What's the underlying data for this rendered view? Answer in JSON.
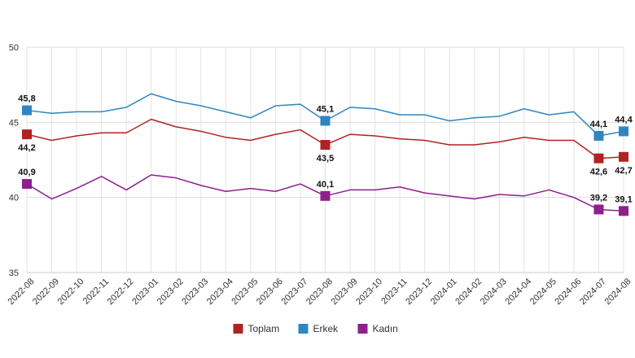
{
  "chart_data": {
    "type": "line",
    "title": "",
    "xlabel": "",
    "ylabel": "",
    "ylim": [
      35,
      50
    ],
    "yticks": [
      35,
      40,
      45,
      50
    ],
    "grid": true,
    "legend_position": "bottom-center",
    "categories": [
      "2022-08",
      "2022-09",
      "2022-10",
      "2022-11",
      "2022-12",
      "2023-01",
      "2023-02",
      "2023-03",
      "2023-04",
      "2023-05",
      "2023-06",
      "2023-07",
      "2023-08",
      "2023-09",
      "2023-10",
      "2023-11",
      "2023-12",
      "2024-01",
      "2024-02",
      "2024-03",
      "2024-04",
      "2024-05",
      "2024-06",
      "2024-07",
      "2024-08"
    ],
    "series": [
      {
        "name": "Toplam",
        "color": "#b22222",
        "values": [
          44.2,
          43.8,
          44.1,
          44.3,
          44.3,
          45.2,
          44.7,
          44.4,
          44.0,
          43.8,
          44.2,
          44.5,
          43.5,
          44.2,
          44.1,
          43.9,
          43.8,
          43.5,
          43.5,
          43.7,
          44.0,
          43.8,
          43.8,
          42.6,
          42.7
        ],
        "labeled_points": [
          {
            "index": 0,
            "text": "44,2",
            "pos": "below"
          },
          {
            "index": 12,
            "text": "43,5",
            "pos": "below"
          },
          {
            "index": 23,
            "text": "42,6",
            "pos": "below"
          },
          {
            "index": 24,
            "text": "42,7",
            "pos": "below"
          }
        ]
      },
      {
        "name": "Erkek",
        "color": "#2e86c1",
        "values": [
          45.8,
          45.6,
          45.7,
          45.7,
          46.0,
          46.9,
          46.4,
          46.1,
          45.7,
          45.3,
          46.1,
          46.2,
          45.1,
          46.0,
          45.9,
          45.5,
          45.5,
          45.1,
          45.3,
          45.4,
          45.9,
          45.5,
          45.7,
          44.1,
          44.4
        ],
        "labeled_points": [
          {
            "index": 0,
            "text": "45,8",
            "pos": "above"
          },
          {
            "index": 12,
            "text": "45,1",
            "pos": "above"
          },
          {
            "index": 23,
            "text": "44,1",
            "pos": "above"
          },
          {
            "index": 24,
            "text": "44,4",
            "pos": "above"
          }
        ]
      },
      {
        "name": "Kadın",
        "color": "#8e1f8e",
        "values": [
          40.9,
          39.9,
          40.6,
          41.4,
          40.5,
          41.5,
          41.3,
          40.8,
          40.4,
          40.6,
          40.4,
          40.9,
          40.1,
          40.5,
          40.5,
          40.7,
          40.3,
          40.1,
          39.9,
          40.2,
          40.1,
          40.5,
          40.0,
          39.2,
          39.1
        ],
        "labeled_points": [
          {
            "index": 0,
            "text": "40,9",
            "pos": "above"
          },
          {
            "index": 12,
            "text": "40,1",
            "pos": "above"
          },
          {
            "index": 23,
            "text": "39,2",
            "pos": "above"
          },
          {
            "index": 24,
            "text": "39,1",
            "pos": "above"
          }
        ]
      }
    ]
  }
}
